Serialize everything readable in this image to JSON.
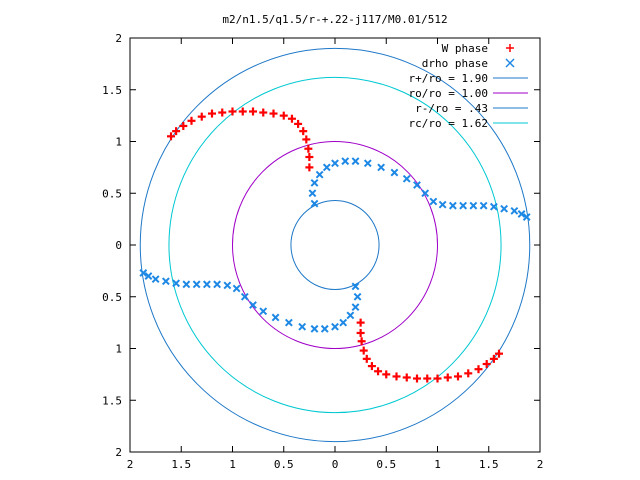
{
  "chart_data": {
    "type": "scatter",
    "title": "m2/n1.5/q1.5/r-+.22-j117/M0.01/512",
    "xlim": [
      -2,
      2
    ],
    "ylim": [
      -2,
      2
    ],
    "x_tick_values": [
      -2,
      -1.5,
      -1,
      -0.5,
      0,
      0.5,
      1,
      1.5,
      2
    ],
    "x_tick_labels": [
      "2",
      "1.5",
      "1",
      "0.5",
      "0",
      "0.5",
      "1",
      "1.5",
      "2"
    ],
    "y_tick_values": [
      2,
      1.5,
      1,
      0.5,
      0,
      -0.5,
      -1,
      -1.5,
      -2
    ],
    "y_tick_labels": [
      "2",
      "1.5",
      "1",
      "0.5",
      "0",
      "0.5",
      "1",
      "1.5",
      "2"
    ],
    "grid": false,
    "legend_position": "top-right",
    "series": [
      {
        "name": "W phase",
        "marker": "+",
        "color": "#ff0000",
        "points": [
          [
            -1.6,
            1.05
          ],
          [
            -1.55,
            1.1
          ],
          [
            -1.48,
            1.15
          ],
          [
            -1.4,
            1.2
          ],
          [
            -1.3,
            1.24
          ],
          [
            -1.2,
            1.27
          ],
          [
            -1.1,
            1.28
          ],
          [
            -1.0,
            1.29
          ],
          [
            -0.9,
            1.29
          ],
          [
            -0.8,
            1.29
          ],
          [
            -0.7,
            1.28
          ],
          [
            -0.6,
            1.27
          ],
          [
            -0.5,
            1.25
          ],
          [
            -0.42,
            1.22
          ],
          [
            -0.36,
            1.17
          ],
          [
            -0.31,
            1.1
          ],
          [
            -0.28,
            1.02
          ],
          [
            -0.26,
            0.93
          ],
          [
            -0.25,
            0.85
          ],
          [
            -0.25,
            0.75
          ],
          [
            1.6,
            -1.05
          ],
          [
            1.55,
            -1.1
          ],
          [
            1.48,
            -1.15
          ],
          [
            1.4,
            -1.2
          ],
          [
            1.3,
            -1.24
          ],
          [
            1.2,
            -1.27
          ],
          [
            1.1,
            -1.28
          ],
          [
            1.0,
            -1.29
          ],
          [
            0.9,
            -1.29
          ],
          [
            0.8,
            -1.29
          ],
          [
            0.7,
            -1.28
          ],
          [
            0.6,
            -1.27
          ],
          [
            0.5,
            -1.25
          ],
          [
            0.42,
            -1.22
          ],
          [
            0.36,
            -1.17
          ],
          [
            0.31,
            -1.1
          ],
          [
            0.28,
            -1.02
          ],
          [
            0.26,
            -0.93
          ],
          [
            0.25,
            -0.85
          ],
          [
            0.25,
            -0.75
          ]
        ]
      },
      {
        "name": "drho phase",
        "marker": "x",
        "color": "#1e88e5",
        "points": [
          [
            -0.2,
            0.4
          ],
          [
            -0.22,
            0.5
          ],
          [
            -0.2,
            0.6
          ],
          [
            -0.15,
            0.68
          ],
          [
            -0.08,
            0.75
          ],
          [
            0.0,
            0.79
          ],
          [
            0.1,
            0.81
          ],
          [
            0.2,
            0.81
          ],
          [
            0.32,
            0.79
          ],
          [
            0.45,
            0.75
          ],
          [
            0.58,
            0.7
          ],
          [
            0.7,
            0.64
          ],
          [
            0.8,
            0.58
          ],
          [
            0.88,
            0.5
          ],
          [
            0.96,
            0.42
          ],
          [
            1.05,
            0.39
          ],
          [
            1.15,
            0.38
          ],
          [
            1.25,
            0.38
          ],
          [
            1.35,
            0.38
          ],
          [
            1.45,
            0.38
          ],
          [
            1.55,
            0.37
          ],
          [
            1.65,
            0.35
          ],
          [
            1.75,
            0.33
          ],
          [
            1.82,
            0.3
          ],
          [
            1.87,
            0.27
          ],
          [
            0.2,
            -0.4
          ],
          [
            0.22,
            -0.5
          ],
          [
            0.2,
            -0.6
          ],
          [
            0.15,
            -0.68
          ],
          [
            0.08,
            -0.75
          ],
          [
            0.0,
            -0.79
          ],
          [
            -0.1,
            -0.81
          ],
          [
            -0.2,
            -0.81
          ],
          [
            -0.32,
            -0.79
          ],
          [
            -0.45,
            -0.75
          ],
          [
            -0.58,
            -0.7
          ],
          [
            -0.7,
            -0.64
          ],
          [
            -0.8,
            -0.58
          ],
          [
            -0.88,
            -0.5
          ],
          [
            -0.96,
            -0.42
          ],
          [
            -1.05,
            -0.39
          ],
          [
            -1.15,
            -0.38
          ],
          [
            -1.25,
            -0.38
          ],
          [
            -1.35,
            -0.38
          ],
          [
            -1.45,
            -0.38
          ],
          [
            -1.55,
            -0.37
          ],
          [
            -1.65,
            -0.35
          ],
          [
            -1.75,
            -0.33
          ],
          [
            -1.82,
            -0.3
          ],
          [
            -1.87,
            -0.27
          ]
        ]
      },
      {
        "name": "r+/ro = 1.90",
        "type": "circle",
        "radius": 1.9,
        "color": "#1e78c8"
      },
      {
        "name": "ro/ro = 1.00",
        "type": "circle",
        "radius": 1.0,
        "color": "#a000c8"
      },
      {
        "name": "r-/ro = .43",
        "type": "circle",
        "radius": 0.43,
        "color": "#1e78c8"
      },
      {
        "name": "rc/ro = 1.62",
        "type": "circle",
        "radius": 1.62,
        "color": "#00c8d2"
      }
    ]
  }
}
